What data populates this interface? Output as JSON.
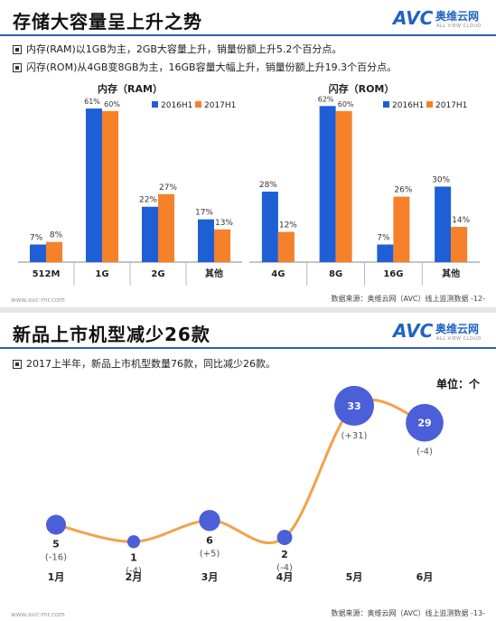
{
  "page1": {
    "title": "存储大容量呈上升之势",
    "logo": {
      "avc": "AVC",
      "cn": "奥维云网",
      "en": "ALL VIEW CLOUD"
    },
    "bullets": [
      "内存(RAM)以1GB为主，2GB大容量上升，销量份额上升5.2个百分点。",
      "闪存(ROM)从4GB变8GB为主，16GB容量大幅上升，销量份额上升19.3个百分点。"
    ],
    "footer_left": "www.avc-mr.com",
    "footer_right": "数据来源：奥维云网（AVC）线上监测数据  -12-"
  },
  "page2": {
    "title": "新品上市机型减少26款",
    "logo": {
      "avc": "AVC",
      "cn": "奥维云网",
      "en": "ALL VIEW CLOUD"
    },
    "bullets": [
      "2017上半年，新品上市机型数量76款，同比减少26款。"
    ],
    "unit": "单位：个",
    "footer_left": "www.avc-mr.com",
    "footer_right": "数据来源：奥维云网（AVC）线上监测数据  -13-"
  },
  "chart_data": [
    {
      "type": "bar",
      "title": "内存（RAM）",
      "categories": [
        "512M",
        "1G",
        "2G",
        "其他"
      ],
      "series": [
        {
          "name": "2016H1",
          "values": [
            7,
            61,
            22,
            17
          ],
          "labels": [
            "7%",
            "61%",
            "22%",
            "17%"
          ]
        },
        {
          "name": "2017H1",
          "values": [
            8,
            60,
            27,
            13
          ],
          "labels": [
            "8%",
            "60%",
            "27%",
            "13%"
          ]
        }
      ],
      "ylim": [
        0,
        70
      ],
      "colors": [
        "#1f5fd6",
        "#f5812a"
      ],
      "legend": "top-right"
    },
    {
      "type": "bar",
      "title": "闪存（ROM）",
      "categories": [
        "4G",
        "8G",
        "16G",
        "其他"
      ],
      "series": [
        {
          "name": "2016H1",
          "values": [
            28,
            62,
            7,
            30
          ],
          "labels": [
            "28%",
            "62%",
            "7%",
            "30%"
          ]
        },
        {
          "name": "2017H1",
          "values": [
            12,
            60,
            26,
            14
          ],
          "labels": [
            "12%",
            "60%",
            "26%",
            "14%"
          ]
        }
      ],
      "ylim": [
        0,
        70
      ],
      "colors": [
        "#1f5fd6",
        "#f5812a"
      ],
      "legend": "top-right"
    },
    {
      "type": "line",
      "categories": [
        "1月",
        "2月",
        "3月",
        "4月",
        "5月",
        "6月"
      ],
      "values": [
        5,
        1,
        6,
        2,
        33,
        29
      ],
      "changes": [
        "(-16)",
        "(-4)",
        "(+5)",
        "(-4)",
        "(+31)",
        "(-4)"
      ],
      "ylim": [
        0,
        40
      ],
      "line_color": "#f5a04a",
      "point_color": "#4a5fd8"
    }
  ]
}
